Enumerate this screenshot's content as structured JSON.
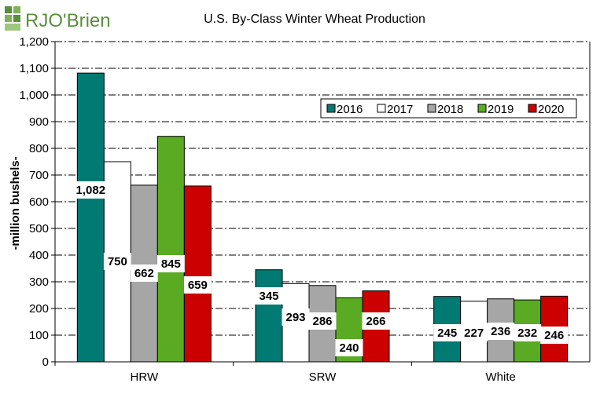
{
  "logo": {
    "text": "RJO'Brien",
    "brand_color": "#5a8f3c"
  },
  "chart_data": {
    "type": "bar",
    "title": "U.S. By-Class Winter Wheat Production",
    "xlabel": "",
    "ylabel": "-million bushels-",
    "ylim": [
      0,
      1200
    ],
    "ytick_step": 100,
    "ytick_labels": [
      "0",
      "100",
      "200",
      "300",
      "400",
      "500",
      "600",
      "700",
      "800",
      "900",
      "1,000",
      "1,100",
      "1,200"
    ],
    "grid": true,
    "legend_position": "top-right",
    "categories": [
      "HRW",
      "SRW",
      "White"
    ],
    "series": [
      {
        "name": "2016",
        "color": "#007a72",
        "values": [
          1082,
          345,
          245
        ],
        "labels": [
          "1,082",
          "345",
          "245"
        ]
      },
      {
        "name": "2017",
        "color": "#ffffff",
        "values": [
          750,
          293,
          227
        ],
        "labels": [
          "750",
          "293",
          "227"
        ]
      },
      {
        "name": "2018",
        "color": "#a6a6a6",
        "values": [
          662,
          286,
          236
        ],
        "labels": [
          "662",
          "286",
          "236"
        ]
      },
      {
        "name": "2019",
        "color": "#5aab23",
        "values": [
          845,
          240,
          232
        ],
        "labels": [
          "845",
          "240",
          "232"
        ]
      },
      {
        "name": "2020",
        "color": "#cc0000",
        "values": [
          659,
          266,
          246
        ],
        "labels": [
          "659",
          "266",
          "246"
        ]
      }
    ]
  }
}
